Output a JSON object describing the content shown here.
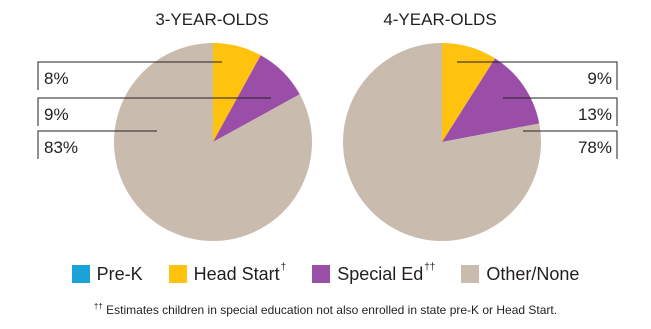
{
  "chart_data": [
    {
      "type": "pie",
      "title": "3-YEAR-OLDS",
      "categories": [
        "Pre-K",
        "Head Start",
        "Special Ed",
        "Other/None"
      ],
      "values": [
        0,
        8,
        9,
        83
      ],
      "labels": [
        "8%",
        "9%",
        "83%"
      ]
    },
    {
      "type": "pie",
      "title": "4-YEAR-OLDS",
      "categories": [
        "Pre-K",
        "Head Start",
        "Special Ed",
        "Other/None"
      ],
      "values": [
        0,
        9,
        13,
        78
      ],
      "labels": [
        "9%",
        "13%",
        "78%"
      ]
    }
  ],
  "colors": {
    "pre_k": "#1aa3d6",
    "head_start": "#ffc20e",
    "special_ed": "#9b4ea8",
    "other_none": "#c9bcae",
    "leader_line": "#231f20"
  },
  "legend": {
    "items": [
      {
        "label": "Pre-K",
        "sup": "",
        "color": "#1aa3d6"
      },
      {
        "label": "Head Start",
        "sup": "†",
        "color": "#ffc20e"
      },
      {
        "label": "Special Ed",
        "sup": "††",
        "color": "#9b4ea8"
      },
      {
        "label": "Other/None",
        "sup": "",
        "color": "#c9bcae"
      }
    ]
  },
  "footnote": {
    "mark": "††",
    "text": " Estimates children in special education not also enrolled in state pre-K or Head Start."
  }
}
